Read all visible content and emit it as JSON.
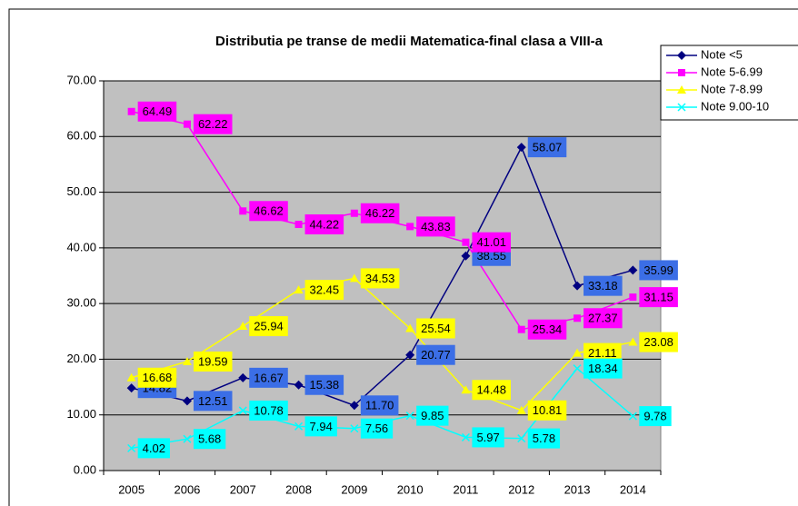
{
  "chart_data": {
    "type": "line",
    "title": "Distributia pe transe de medii Matematica-final clasa a VIII-a",
    "categories": [
      "2005",
      "2006",
      "2007",
      "2008",
      "2009",
      "2010",
      "2011",
      "2012",
      "2013",
      "2014"
    ],
    "series": [
      {
        "name": "Note <5",
        "color": "#000080",
        "marker": "diamond",
        "label_color": "#3b6ee6",
        "values": [
          14.82,
          12.51,
          16.67,
          15.38,
          11.7,
          20.77,
          38.55,
          58.07,
          33.18,
          35.99
        ],
        "value_labels": [
          "14.82",
          "12.51",
          "16.67",
          "15.38",
          "11.70",
          "20.77",
          "38.55",
          "58.07",
          "33.18",
          "35.99"
        ]
      },
      {
        "name": "Note 5-6.99",
        "color": "#ff00ff",
        "marker": "square",
        "label_color": "#ff00ff",
        "values": [
          64.49,
          62.22,
          46.62,
          44.22,
          46.22,
          43.83,
          41.01,
          25.34,
          27.37,
          31.15
        ],
        "value_labels": [
          "64.49",
          "62.22",
          "46.62",
          "44.22",
          "46.22",
          "43.83",
          "41.01",
          "25.34",
          "27.37",
          "31.15"
        ]
      },
      {
        "name": "Note 7-8.99",
        "color": "#ffff00",
        "marker": "triangle",
        "label_color": "#ffff00",
        "values": [
          16.68,
          19.59,
          25.94,
          32.45,
          34.53,
          25.54,
          14.48,
          10.81,
          21.11,
          23.08
        ],
        "value_labels": [
          "16.68",
          "19.59",
          "25.94",
          "32.45",
          "34.53",
          "25.54",
          "14.48",
          "10.81",
          "21.11",
          "23.08"
        ]
      },
      {
        "name": "Note 9.00-10",
        "color": "#00ffff",
        "marker": "x",
        "label_color": "#00ffff",
        "values": [
          4.02,
          5.68,
          10.78,
          7.94,
          7.56,
          9.85,
          5.97,
          5.78,
          18.34,
          9.78
        ],
        "value_labels": [
          "4.02",
          "5.68",
          "10.78",
          "7.94",
          "7.56",
          "9.85",
          "5.97",
          "5.78",
          "18.34",
          "9.78"
        ]
      }
    ],
    "ylim": [
      0,
      70
    ],
    "yticks": [
      {
        "value": 0,
        "label": "0.00"
      },
      {
        "value": 10,
        "label": "10.00"
      },
      {
        "value": 20,
        "label": "20.00"
      },
      {
        "value": 30,
        "label": "30.00"
      },
      {
        "value": 40,
        "label": "40.00"
      },
      {
        "value": 50,
        "label": "50.00"
      },
      {
        "value": 60,
        "label": "60.00"
      },
      {
        "value": 70,
        "label": "70.00"
      }
    ],
    "grid": true,
    "legend": "top-right",
    "plot_background": "#c0c0c0"
  }
}
